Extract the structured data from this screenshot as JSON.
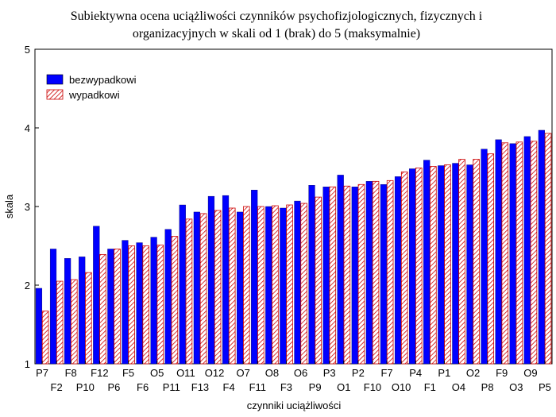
{
  "chart_data": {
    "type": "bar",
    "title_lines": [
      "Subiektywna ocena uciążliwości czynników psychofizjologicznych, fizycznych i",
      "organizacyjnych w skali od 1 (brak) do 5 (maksymalnie)"
    ],
    "xlabel": "czynniki uciążliwości",
    "ylabel": "skala",
    "ylim": [
      1,
      5
    ],
    "yticks": [
      1,
      2,
      3,
      4,
      5
    ],
    "categories": [
      "P7",
      "F2",
      "F8",
      "P10",
      "F12",
      "P6",
      "F5",
      "F6",
      "O5",
      "P11",
      "O11",
      "F13",
      "O12",
      "F4",
      "O7",
      "F11",
      "O8",
      "F3",
      "O6",
      "P9",
      "P3",
      "O1",
      "P2",
      "F10",
      "F7",
      "O10",
      "P4",
      "F1",
      "P1",
      "O4",
      "O2",
      "P8",
      "F9",
      "O3",
      "O9",
      "P5"
    ],
    "series": [
      {
        "name": "bezwypadkowi",
        "color": "#0000ff",
        "pattern": "solid",
        "values": [
          1.96,
          2.46,
          2.34,
          2.36,
          2.75,
          2.46,
          2.57,
          2.54,
          2.61,
          2.71,
          3.02,
          2.93,
          3.13,
          3.14,
          2.93,
          3.21,
          3.0,
          2.98,
          3.07,
          3.27,
          3.25,
          3.4,
          3.25,
          3.32,
          3.28,
          3.38,
          3.48,
          3.59,
          3.52,
          3.55,
          3.53,
          3.73,
          3.85,
          3.8,
          3.89,
          3.97
        ]
      },
      {
        "name": "wypadkowi",
        "color": "#cc0000",
        "pattern": "hatched",
        "values": [
          1.67,
          2.05,
          2.07,
          2.16,
          2.39,
          2.46,
          2.5,
          2.5,
          2.51,
          2.62,
          2.84,
          2.91,
          2.95,
          2.98,
          3.0,
          3.0,
          3.01,
          3.02,
          3.04,
          3.12,
          3.25,
          3.26,
          3.28,
          3.32,
          3.33,
          3.44,
          3.49,
          3.51,
          3.53,
          3.6,
          3.6,
          3.67,
          3.81,
          3.82,
          3.83,
          3.93
        ]
      }
    ],
    "legend_position": "top-left",
    "grid": false
  }
}
